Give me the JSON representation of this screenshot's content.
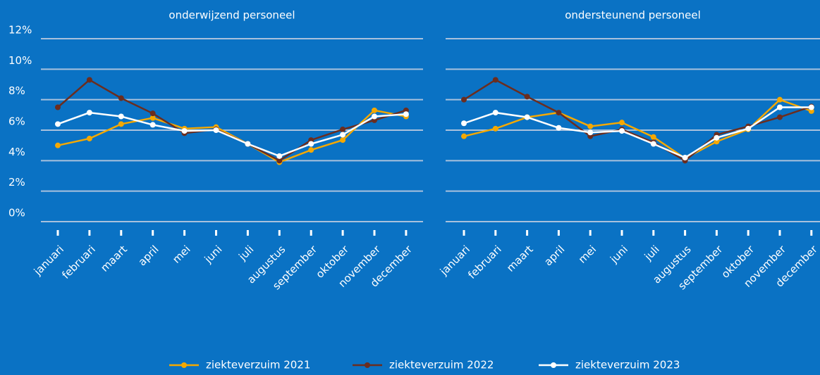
{
  "chart_data": [
    {
      "type": "line",
      "title": "onderwijzend personeel",
      "categories": [
        "januari",
        "februari",
        "maart",
        "april",
        "mei",
        "juni",
        "juli",
        "augustus",
        "september",
        "oktober",
        "november",
        "december"
      ],
      "ylim": [
        0,
        12
      ],
      "yticks": [
        {
          "value": 0,
          "label": "0%"
        },
        {
          "value": 2,
          "label": "2%"
        },
        {
          "value": 4,
          "label": "4%"
        },
        {
          "value": 6,
          "label": "6%"
        },
        {
          "value": 8,
          "label": "8%"
        },
        {
          "value": 10,
          "label": "10%"
        },
        {
          "value": 12,
          "label": "12%"
        }
      ],
      "grid": true,
      "legend": "bottom",
      "series": [
        {
          "name": "ziekteverzuim 2021",
          "color": "#f5a800",
          "values": [
            5.0,
            5.45,
            6.4,
            6.8,
            6.1,
            6.2,
            5.1,
            3.9,
            4.7,
            5.35,
            7.3,
            6.9
          ]
        },
        {
          "name": "ziekteverzuim 2022",
          "color": "#6b2d1f",
          "values": [
            7.5,
            9.3,
            8.1,
            7.1,
            5.8,
            6.05,
            5.1,
            4.0,
            5.35,
            6.05,
            6.65,
            7.3
          ]
        },
        {
          "name": "ziekteverzuim 2023",
          "color": "#ffffff",
          "values": [
            6.4,
            7.15,
            6.9,
            6.35,
            5.95,
            6.0,
            5.1,
            4.3,
            5.1,
            5.7,
            6.9,
            7.05
          ]
        }
      ]
    },
    {
      "type": "line",
      "title": "ondersteunend personeel",
      "categories": [
        "januari",
        "februari",
        "maart",
        "april",
        "mei",
        "juni",
        "juli",
        "augustus",
        "september",
        "oktober",
        "november",
        "december"
      ],
      "ylim": [
        0,
        12
      ],
      "yticks": [
        0,
        2,
        4,
        6,
        8,
        10,
        12
      ],
      "grid": true,
      "series": [
        {
          "color": "#f5a800",
          "values": [
            5.6,
            6.1,
            6.85,
            7.15,
            6.25,
            6.5,
            5.55,
            4.15,
            5.25,
            6.05,
            8.0,
            7.25
          ]
        },
        {
          "color": "#6b2d1f",
          "values": [
            8.0,
            9.3,
            8.2,
            7.15,
            5.6,
            6.05,
            5.2,
            4.0,
            5.7,
            6.25,
            6.85,
            7.55
          ]
        },
        {
          "color": "#ffffff",
          "values": [
            6.45,
            7.15,
            6.85,
            6.15,
            5.85,
            5.95,
            5.1,
            4.2,
            5.5,
            6.1,
            7.5,
            7.5
          ]
        }
      ]
    }
  ]
}
